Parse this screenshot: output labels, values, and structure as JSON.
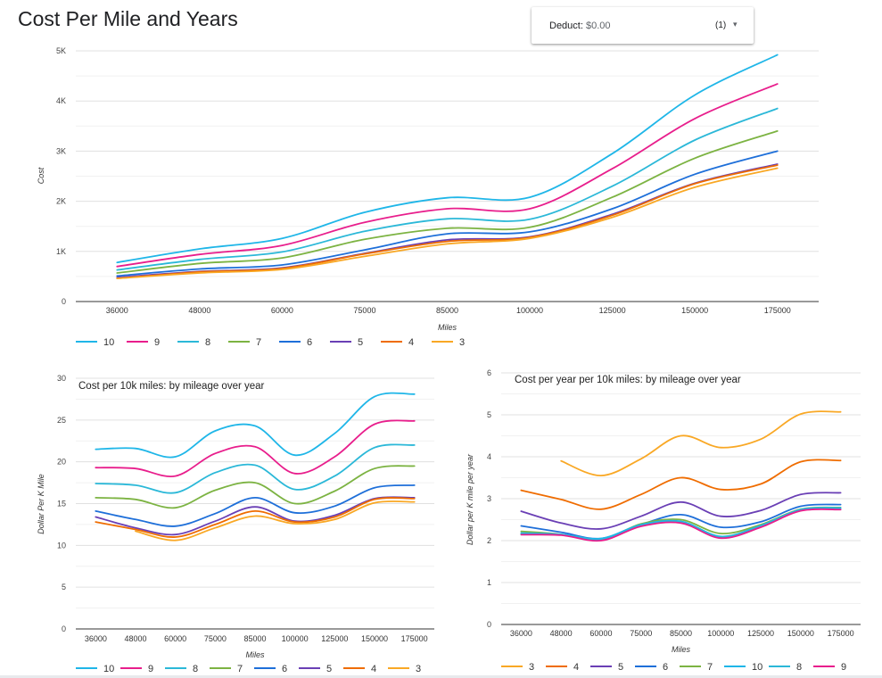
{
  "page": {
    "title": "Cost Per Mile and Years"
  },
  "filter": {
    "label": "Deduct:",
    "value": "$0.00",
    "count": "(1)",
    "icon": "caret-down-icon"
  },
  "colors": {
    "10": "#1fb6e8",
    "9": "#e81e8c",
    "8": "#2bb8d8",
    "7": "#7cb342",
    "6": "#1e6fd9",
    "5": "#6a3fb5",
    "4": "#ef6c00",
    "3": "#f9a825"
  },
  "chart_data": [
    {
      "type": "line",
      "title": "",
      "xlabel": "Miles",
      "ylabel": "Cost",
      "categories": [
        "36000",
        "48000",
        "60000",
        "75000",
        "85000",
        "100000",
        "125000",
        "150000",
        "175000"
      ],
      "ylim": [
        0,
        5000
      ],
      "yticks": [
        0,
        1000,
        2000,
        3000,
        4000,
        5000
      ],
      "ytick_labels": [
        "0",
        "1K",
        "2K",
        "3K",
        "4K",
        "5K"
      ],
      "grid": true,
      "legend": "bottom",
      "series": [
        {
          "name": "10",
          "values": [
            780,
            1050,
            1260,
            1780,
            2070,
            2080,
            2950,
            4120,
            4920
          ]
        },
        {
          "name": "9",
          "values": [
            700,
            940,
            1120,
            1580,
            1850,
            1850,
            2650,
            3650,
            4340
          ]
        },
        {
          "name": "8",
          "values": [
            630,
            840,
            990,
            1400,
            1650,
            1640,
            2300,
            3220,
            3850
          ]
        },
        {
          "name": "7",
          "values": [
            570,
            760,
            870,
            1240,
            1460,
            1480,
            2080,
            2860,
            3400
          ]
        },
        {
          "name": "6",
          "values": [
            510,
            650,
            730,
            1030,
            1350,
            1390,
            1850,
            2540,
            3000
          ]
        },
        {
          "name": "5",
          "values": [
            480,
            600,
            670,
            960,
            1230,
            1290,
            1740,
            2360,
            2740
          ]
        },
        {
          "name": "4",
          "values": [
            460,
            590,
            660,
            950,
            1200,
            1280,
            1720,
            2350,
            2720
          ]
        },
        {
          "name": "3",
          "values": [
            460,
            570,
            640,
            900,
            1150,
            1260,
            1680,
            2280,
            2660
          ]
        }
      ]
    },
    {
      "type": "line",
      "title": "Cost per 10k miles: by mileage over year",
      "xlabel": "Miles",
      "ylabel": "Dollar Per K Mile",
      "categories": [
        "36000",
        "48000",
        "60000",
        "75000",
        "85000",
        "100000",
        "125000",
        "150000",
        "175000"
      ],
      "ylim": [
        0,
        30
      ],
      "yticks": [
        0,
        5,
        10,
        15,
        20,
        25,
        30
      ],
      "grid": true,
      "legend": "bottom",
      "legend_names": [
        "10",
        "9",
        "8",
        "7",
        "6",
        "5",
        "4",
        "3"
      ],
      "series": [
        {
          "name": "10",
          "values": [
            21.5,
            21.6,
            20.6,
            23.7,
            24.3,
            20.8,
            23.4,
            27.8,
            28.1
          ]
        },
        {
          "name": "9",
          "values": [
            19.3,
            19.2,
            18.3,
            21.0,
            21.8,
            18.6,
            20.6,
            24.5,
            24.9
          ]
        },
        {
          "name": "8",
          "values": [
            17.4,
            17.2,
            16.3,
            18.7,
            19.6,
            16.7,
            18.3,
            21.7,
            22.0
          ]
        },
        {
          "name": "7",
          "values": [
            15.7,
            15.5,
            14.5,
            16.6,
            17.5,
            15.0,
            16.5,
            19.2,
            19.5
          ]
        },
        {
          "name": "6",
          "values": [
            14.1,
            13.1,
            12.3,
            13.8,
            15.7,
            13.9,
            14.7,
            16.9,
            17.2
          ]
        },
        {
          "name": "5",
          "values": [
            13.4,
            12.1,
            11.3,
            12.9,
            14.6,
            12.9,
            13.6,
            15.6,
            15.7
          ]
        },
        {
          "name": "4",
          "values": [
            12.8,
            11.9,
            11.0,
            12.5,
            14.1,
            12.8,
            13.4,
            15.5,
            15.6
          ]
        },
        {
          "name": "3",
          "values": [
            null,
            11.7,
            10.6,
            12.1,
            13.5,
            12.6,
            13.1,
            15.1,
            15.2
          ]
        }
      ]
    },
    {
      "type": "line",
      "title": "Cost per year per 10k miles: by mileage over year",
      "xlabel": "Miles",
      "ylabel": "Dollar per K mile per year",
      "categories": [
        "36000",
        "48000",
        "60000",
        "75000",
        "85000",
        "100000",
        "125000",
        "150000",
        "175000"
      ],
      "ylim": [
        0,
        6
      ],
      "yticks": [
        0,
        1,
        2,
        3,
        4,
        5,
        6
      ],
      "grid": true,
      "legend": "bottom",
      "series": [
        {
          "name": "3",
          "values": [
            null,
            3.9,
            3.55,
            3.95,
            4.5,
            4.22,
            4.42,
            5.02,
            5.07
          ]
        },
        {
          "name": "4",
          "values": [
            3.2,
            2.98,
            2.75,
            3.1,
            3.5,
            3.22,
            3.35,
            3.88,
            3.91
          ]
        },
        {
          "name": "5",
          "values": [
            2.7,
            2.42,
            2.28,
            2.58,
            2.92,
            2.58,
            2.72,
            3.1,
            3.14
          ]
        },
        {
          "name": "6",
          "values": [
            2.35,
            2.2,
            2.05,
            2.38,
            2.62,
            2.32,
            2.45,
            2.82,
            2.86
          ]
        },
        {
          "name": "7",
          "values": [
            2.22,
            2.15,
            2.02,
            2.4,
            2.5,
            2.17,
            2.38,
            2.75,
            2.79
          ]
        },
        {
          "name": "10",
          "values": [
            2.18,
            2.15,
            2.05,
            2.38,
            2.46,
            2.1,
            2.36,
            2.74,
            2.78
          ]
        },
        {
          "name": "8",
          "values": [
            2.16,
            2.14,
            2.02,
            2.35,
            2.44,
            2.08,
            2.34,
            2.72,
            2.75
          ]
        },
        {
          "name": "9",
          "values": [
            2.14,
            2.13,
            2.0,
            2.34,
            2.42,
            2.06,
            2.32,
            2.71,
            2.74
          ]
        }
      ]
    }
  ]
}
